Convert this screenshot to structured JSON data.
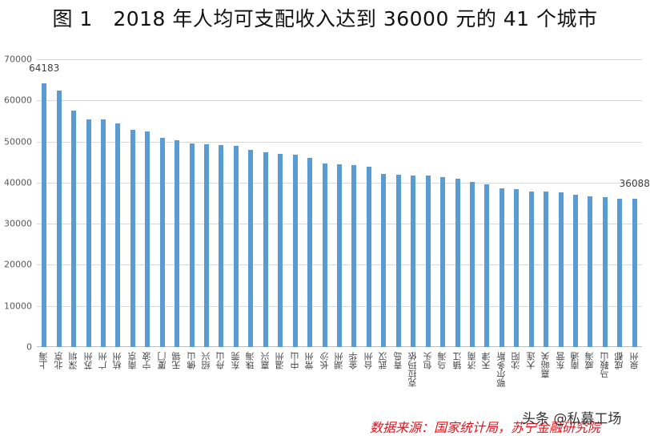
{
  "title": "图 1　2018 年人均可支配收入达到 36000 元的 41 个城市",
  "source": "数据来源：国家统计局，苏宁金融研究院",
  "watermark": "头条 @私募工场",
  "chart_data": {
    "type": "bar",
    "title": "图 1　2018 年人均可支配收入达到 36000 元的 41 个城市",
    "xlabel": "",
    "ylabel": "",
    "ylim": [
      0,
      70000
    ],
    "yticks": [
      0,
      10000,
      20000,
      30000,
      40000,
      50000,
      60000,
      70000
    ],
    "grid": true,
    "legend": null,
    "categories": [
      "上海",
      "北京",
      "深圳",
      "苏州",
      "广州",
      "杭州",
      "南京",
      "宁波",
      "厦门",
      "无锡",
      "佛山",
      "绍兴",
      "舟山",
      "东莞",
      "珠海",
      "嘉兴",
      "温州",
      "中山",
      "常州",
      "长沙",
      "湖州",
      "金华",
      "台州",
      "武汉",
      "青岛",
      "克拉玛依",
      "包头",
      "乌海",
      "镇江",
      "济南",
      "天津",
      "鄂尔多斯",
      "沈阳",
      "大连",
      "嘉峪关",
      "东营",
      "南通",
      "威海",
      "马鞍山",
      "成都",
      "泉州"
    ],
    "values": [
      64183,
      62361,
      57543,
      55476,
      55400,
      54348,
      52916,
      52402,
      50948,
      50373,
      49577,
      49389,
      49115,
      49006,
      48064,
      47430,
      46916,
      46768,
      45962,
      44601,
      44437,
      44229,
      43910,
      42190,
      41875,
      41810,
      41640,
      41384,
      40930,
      40118,
      39506,
      38557,
      38494,
      37922,
      37867,
      37646,
      37025,
      36630,
      36440,
      36145,
      36088
    ],
    "data_labels": [
      {
        "index": 0,
        "text": "64183"
      },
      {
        "index": 40,
        "text": "36088"
      }
    ]
  }
}
